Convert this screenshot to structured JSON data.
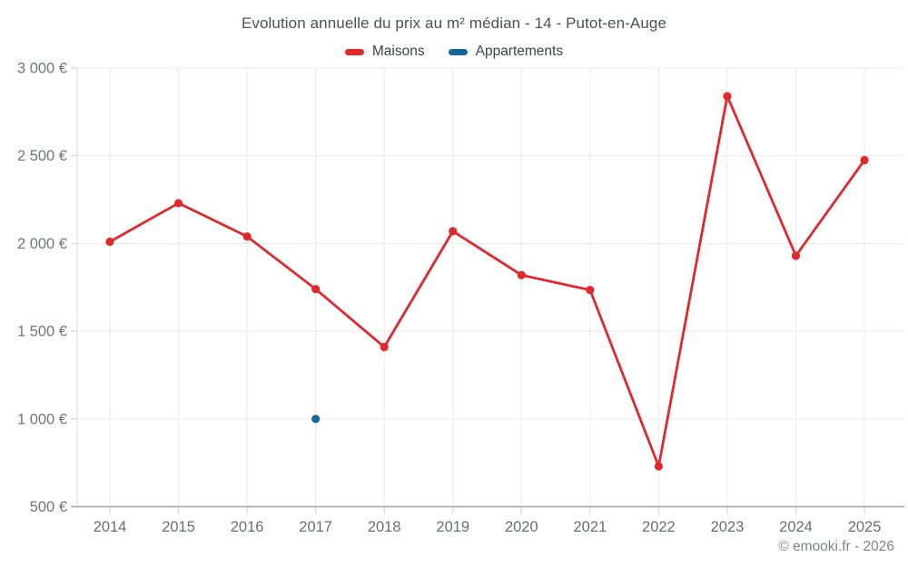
{
  "title": "Evolution annuelle du prix au m² médian - 14 - Putot-en-Auge",
  "legend": {
    "items": [
      {
        "label": "Maisons",
        "color": "#e0282d"
      },
      {
        "label": "Appartements",
        "color": "#15669b"
      }
    ]
  },
  "footer": {
    "credit": "© emooki.fr - 2026"
  },
  "chart_data": {
    "type": "line",
    "title": "Evolution annuelle du prix au m² médian - 14 - Putot-en-Auge",
    "categories": [
      "2014",
      "2015",
      "2016",
      "2017",
      "2018",
      "2019",
      "2020",
      "2021",
      "2022",
      "2023",
      "2024",
      "2025"
    ],
    "series": [
      {
        "name": "Maisons",
        "color": "#e0282d",
        "values": [
          2010,
          2230,
          2040,
          1740,
          1410,
          2070,
          1820,
          1735,
          730,
          2840,
          1930,
          2475
        ]
      },
      {
        "name": "Appartements",
        "color": "#15669b",
        "values": [
          null,
          null,
          null,
          1000,
          null,
          null,
          null,
          null,
          null,
          null,
          null,
          null
        ]
      }
    ],
    "ylim": [
      500,
      3000
    ],
    "yticks": [
      500,
      1000,
      1500,
      2000,
      2500,
      3000
    ],
    "ytick_labels": [
      "500 €",
      "1 000 €",
      "1 500 €",
      "2 000 €",
      "2 500 €",
      "3 000 €"
    ],
    "currency_suffix": "€",
    "grid": true,
    "legend_position": "top",
    "xlabel": "",
    "ylabel": ""
  }
}
